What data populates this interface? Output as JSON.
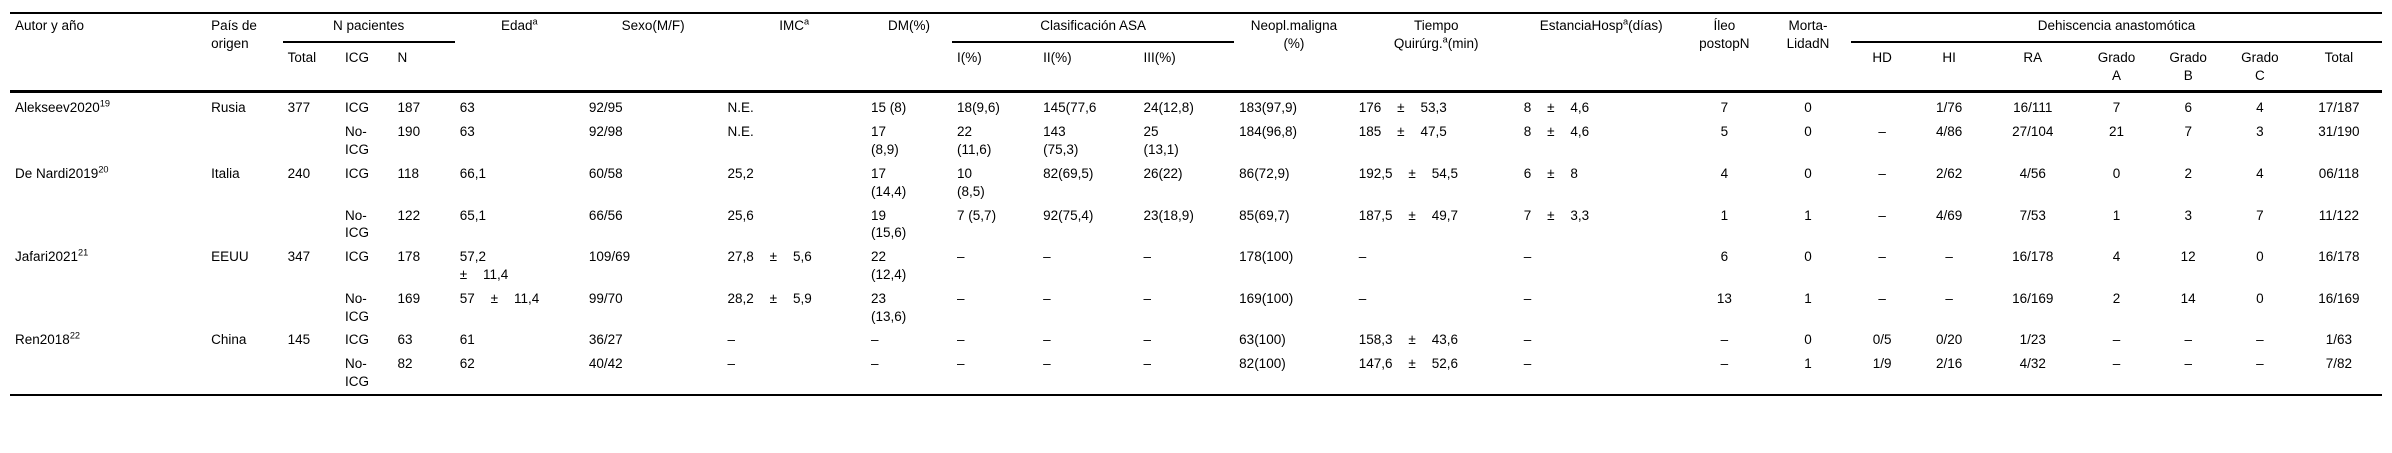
{
  "table": {
    "header": {
      "autor": "Autor y año",
      "pais": "País de\norigen",
      "n_pacientes": {
        "label": "N pacientes",
        "subs": [
          "Total",
          "ICG",
          "N"
        ]
      },
      "edad": {
        "text": "Edad",
        "sup": "a"
      },
      "sexo": "Sexo(M/F)",
      "imc": {
        "text": "IMC",
        "sup": "a"
      },
      "dm": "DM(%)",
      "asa": {
        "label": "Clasificación ASA",
        "subs": [
          "I(%)",
          "II(%)",
          "III(%)"
        ]
      },
      "neopl": "Neopl.maligna\n(%)",
      "tiempo": {
        "line1": "Tiempo",
        "line2": "Quirúrg.",
        "sup": "a",
        "line2b": "(min)"
      },
      "estancia": {
        "text": "EstanciaHosp",
        "sup": "a",
        "suffix": "(días)"
      },
      "ileo": "Íleo\npostopN",
      "morta": "Morta-\nLidadN",
      "dehiscencia": {
        "label": "Dehiscencia anastomótica",
        "subs": [
          "HD",
          "HI",
          "RA",
          "Grado\nA",
          "Grado\nB",
          "Grado\nC",
          "Total"
        ]
      }
    },
    "column_keys": [
      "autor",
      "pais",
      "total",
      "grupo",
      "n",
      "edad",
      "sexo",
      "imc",
      "dm",
      "asa1",
      "asa2",
      "asa3",
      "neopl",
      "tiempo",
      "estancia",
      "ileo",
      "morta",
      "hd",
      "hi",
      "ra",
      "gradoA",
      "gradoB",
      "gradoC",
      "totalDeh"
    ],
    "rows": [
      {
        "autor": "Alekseev2020",
        "autor_sup": "19",
        "pais": "Rusia",
        "total": "377",
        "grupo": "ICG",
        "n": "187",
        "edad": "63",
        "sexo": "92/95",
        "imc": "N.E.",
        "dm": "15 (8)",
        "asa1": "18(9,6)",
        "asa2": "145(77,6",
        "asa3": "24(12,8)",
        "neopl": "183(97,9)",
        "tiempo": "176 ± 53,3",
        "estancia": "8 ± 4,6",
        "ileo": "7",
        "morta": "0",
        "hd": "",
        "hi": "1/76",
        "ra": "16/111",
        "gradoA": "7",
        "gradoB": "6",
        "gradoC": "4",
        "totalDeh": "17/187"
      },
      {
        "autor": "",
        "pais": "",
        "total": "",
        "grupo": "No-\nICG",
        "n": "190",
        "edad": "63",
        "sexo": "92/98",
        "imc": "N.E.",
        "dm": "17\n(8,9)",
        "asa1": "22\n(11,6)",
        "asa2": "143\n(75,3)",
        "asa3": "25\n(13,1)",
        "neopl": "184(96,8)",
        "tiempo": "185 ± 47,5",
        "estancia": "8 ± 4,6",
        "ileo": "5",
        "morta": "0",
        "hd": "–",
        "hi": "4/86",
        "ra": "27/104",
        "gradoA": "21",
        "gradoB": "7",
        "gradoC": "3",
        "totalDeh": "31/190"
      },
      {
        "autor": "De Nardi2019",
        "autor_sup": "20",
        "pais": "Italia",
        "total": "240",
        "grupo": "ICG",
        "n": "118",
        "edad": "66,1",
        "sexo": "60/58",
        "imc": "25,2",
        "dm": "17\n(14,4)",
        "asa1": "10\n(8,5)",
        "asa2": "82(69,5)",
        "asa3": "26(22)",
        "neopl": "86(72,9)",
        "tiempo": "192,5 ± 54,5",
        "estancia": "6 ± 8",
        "ileo": "4",
        "morta": "0",
        "hd": "–",
        "hi": "2/62",
        "ra": "4/56",
        "gradoA": "0",
        "gradoB": "2",
        "gradoC": "4",
        "totalDeh": "06/118"
      },
      {
        "autor": "",
        "pais": "",
        "total": "",
        "grupo": "No-\nICG",
        "n": "122",
        "edad": "65,1",
        "sexo": "66/56",
        "imc": "25,6",
        "dm": "19\n(15,6)",
        "asa1": "7 (5,7)",
        "asa2": "92(75,4)",
        "asa3": "23(18,9)",
        "neopl": "85(69,7)",
        "tiempo": "187,5 ± 49,7",
        "estancia": "7 ± 3,3",
        "ileo": "1",
        "morta": "1",
        "hd": "–",
        "hi": "4/69",
        "ra": "7/53",
        "gradoA": "1",
        "gradoB": "3",
        "gradoC": "7",
        "totalDeh": "11/122"
      },
      {
        "autor": "Jafari2021",
        "autor_sup": "21",
        "pais": "EEUU",
        "total": "347",
        "grupo": "ICG",
        "n": "178",
        "edad": "57,2\n± 11,4",
        "sexo": "109/69",
        "imc": "27,8 ± 5,6",
        "dm": "22\n(12,4)",
        "asa1": "–",
        "asa2": "–",
        "asa3": "–",
        "neopl": "178(100)",
        "tiempo": "–",
        "estancia": "–",
        "ileo": "6",
        "morta": "0",
        "hd": "–",
        "hi": "–",
        "ra": "16/178",
        "gradoA": "4",
        "gradoB": "12",
        "gradoC": "0",
        "totalDeh": "16/178"
      },
      {
        "autor": "",
        "pais": "",
        "total": "",
        "grupo": "No-\nICG",
        "n": "169",
        "edad": "57 ± 11,4",
        "sexo": "99/70",
        "imc": "28,2 ± 5,9",
        "dm": "23\n(13,6)",
        "asa1": "–",
        "asa2": "–",
        "asa3": "–",
        "neopl": "169(100)",
        "tiempo": "–",
        "estancia": "–",
        "ileo": "13",
        "morta": "1",
        "hd": "–",
        "hi": "–",
        "ra": "16/169",
        "gradoA": "2",
        "gradoB": "14",
        "gradoC": "0",
        "totalDeh": "16/169"
      },
      {
        "autor": "Ren2018",
        "autor_sup": "22",
        "pais": "China",
        "total": "145",
        "grupo": "ICG",
        "n": "63",
        "edad": "61",
        "sexo": "36/27",
        "imc": "–",
        "dm": "–",
        "asa1": "–",
        "asa2": "–",
        "asa3": "–",
        "neopl": "63(100)",
        "tiempo": "158,3 ± 43,6",
        "estancia": "–",
        "ileo": "–",
        "morta": "0",
        "hd": "0/5",
        "hi": "0/20",
        "ra": "1/23",
        "gradoA": "–",
        "gradoB": "–",
        "gradoC": "–",
        "totalDeh": "1/63"
      },
      {
        "autor": "",
        "pais": "",
        "total": "",
        "grupo": "No-\nICG",
        "n": "82",
        "edad": "62",
        "sexo": "40/42",
        "imc": "–",
        "dm": "–",
        "asa1": "–",
        "asa2": "–",
        "asa3": "–",
        "neopl": "82(100)",
        "tiempo": "147,6 ± 52,6",
        "estancia": "–",
        "ileo": "–",
        "morta": "1",
        "hd": "1/9",
        "hi": "2/16",
        "ra": "4/32",
        "gradoA": "–",
        "gradoB": "–",
        "gradoC": "–",
        "totalDeh": "7/82"
      }
    ]
  }
}
